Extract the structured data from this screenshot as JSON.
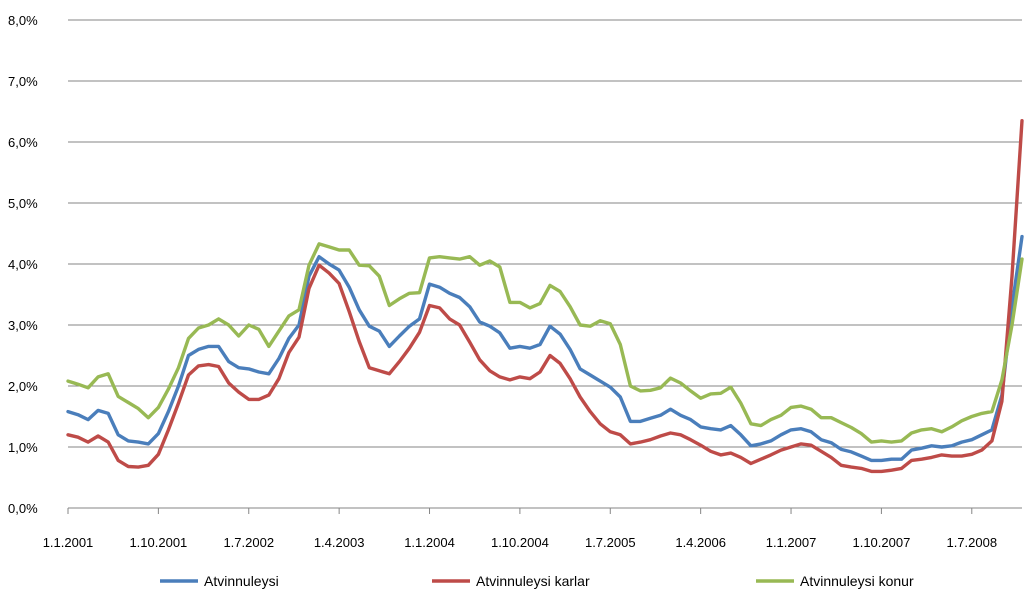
{
  "chart_data": {
    "type": "line",
    "title": "",
    "xlabel": "",
    "ylabel": "",
    "ylim": [
      0,
      8
    ],
    "y_ticks": [
      "0,0%",
      "1,0%",
      "2,0%",
      "3,0%",
      "4,0%",
      "5,0%",
      "6,0%",
      "7,0%",
      "8,0%"
    ],
    "x_ticks": [
      "1.1.2001",
      "1.10.2001",
      "1.7.2002",
      "1.4.2003",
      "1.1.2004",
      "1.10.2004",
      "1.7.2005",
      "1.4.2006",
      "1.1.2007",
      "1.10.2007",
      "1.7.2008"
    ],
    "x_start": "2001-01",
    "x_end": "2008-11",
    "grid": true,
    "legend_position": "bottom",
    "series": [
      {
        "name": "Atvinnuleysi",
        "color": "#4a7ebb",
        "values": [
          1.58,
          1.53,
          1.45,
          1.6,
          1.55,
          1.2,
          1.1,
          1.08,
          1.05,
          1.22,
          1.58,
          2.0,
          2.5,
          2.6,
          2.65,
          2.65,
          2.4,
          2.3,
          2.28,
          2.23,
          2.2,
          2.45,
          2.78,
          3.0,
          3.8,
          4.12,
          4.0,
          3.9,
          3.62,
          3.25,
          2.98,
          2.9,
          2.65,
          2.82,
          2.98,
          3.1,
          3.67,
          3.62,
          3.52,
          3.45,
          3.3,
          3.05,
          2.98,
          2.87,
          2.62,
          2.65,
          2.62,
          2.68,
          2.98,
          2.85,
          2.6,
          2.28,
          2.18,
          2.08,
          1.98,
          1.82,
          1.42,
          1.42,
          1.47,
          1.52,
          1.62,
          1.52,
          1.45,
          1.33,
          1.3,
          1.28,
          1.35,
          1.2,
          1.02,
          1.05,
          1.1,
          1.2,
          1.28,
          1.3,
          1.25,
          1.12,
          1.07,
          0.96,
          0.92,
          0.85,
          0.78,
          0.78,
          0.8,
          0.8,
          0.95,
          0.98,
          1.02,
          1.0,
          1.02,
          1.08,
          1.12,
          1.2,
          1.28,
          1.85,
          3.3,
          4.45
        ]
      },
      {
        "name": "Atvinnuleysi karlar",
        "color": "#be4b48",
        "values": [
          1.2,
          1.16,
          1.08,
          1.18,
          1.08,
          0.78,
          0.68,
          0.67,
          0.7,
          0.88,
          1.28,
          1.72,
          2.18,
          2.33,
          2.35,
          2.32,
          2.05,
          1.9,
          1.78,
          1.78,
          1.85,
          2.12,
          2.55,
          2.8,
          3.6,
          3.98,
          3.85,
          3.68,
          3.22,
          2.73,
          2.3,
          2.25,
          2.2,
          2.4,
          2.62,
          2.88,
          3.32,
          3.28,
          3.1,
          3.0,
          2.72,
          2.43,
          2.25,
          2.15,
          2.1,
          2.15,
          2.12,
          2.23,
          2.5,
          2.37,
          2.12,
          1.82,
          1.58,
          1.38,
          1.25,
          1.2,
          1.05,
          1.08,
          1.12,
          1.18,
          1.23,
          1.2,
          1.12,
          1.03,
          0.93,
          0.87,
          0.9,
          0.83,
          0.73,
          0.8,
          0.87,
          0.95,
          1.0,
          1.05,
          1.03,
          0.93,
          0.83,
          0.7,
          0.67,
          0.65,
          0.6,
          0.6,
          0.62,
          0.65,
          0.78,
          0.8,
          0.83,
          0.87,
          0.85,
          0.85,
          0.88,
          0.95,
          1.1,
          1.75,
          3.8,
          6.35
        ]
      },
      {
        "name": "Atvinnuleysi konur",
        "color": "#98b954",
        "values": [
          2.08,
          2.03,
          1.97,
          2.15,
          2.2,
          1.83,
          1.73,
          1.63,
          1.48,
          1.65,
          1.95,
          2.3,
          2.78,
          2.95,
          3.0,
          3.1,
          3.0,
          2.82,
          3.0,
          2.93,
          2.65,
          2.9,
          3.15,
          3.25,
          3.98,
          4.33,
          4.28,
          4.23,
          4.23,
          3.98,
          3.97,
          3.8,
          3.32,
          3.43,
          3.52,
          3.53,
          4.1,
          4.12,
          4.1,
          4.08,
          4.12,
          3.98,
          4.05,
          3.95,
          3.37,
          3.37,
          3.28,
          3.35,
          3.65,
          3.55,
          3.3,
          3.0,
          2.98,
          3.07,
          3.02,
          2.68,
          2.0,
          1.92,
          1.93,
          1.97,
          2.13,
          2.05,
          1.92,
          1.8,
          1.87,
          1.88,
          1.98,
          1.72,
          1.38,
          1.35,
          1.45,
          1.52,
          1.65,
          1.67,
          1.62,
          1.48,
          1.48,
          1.4,
          1.32,
          1.22,
          1.08,
          1.1,
          1.08,
          1.1,
          1.23,
          1.28,
          1.3,
          1.25,
          1.33,
          1.43,
          1.5,
          1.55,
          1.58,
          2.1,
          3.0,
          4.08
        ]
      }
    ]
  }
}
